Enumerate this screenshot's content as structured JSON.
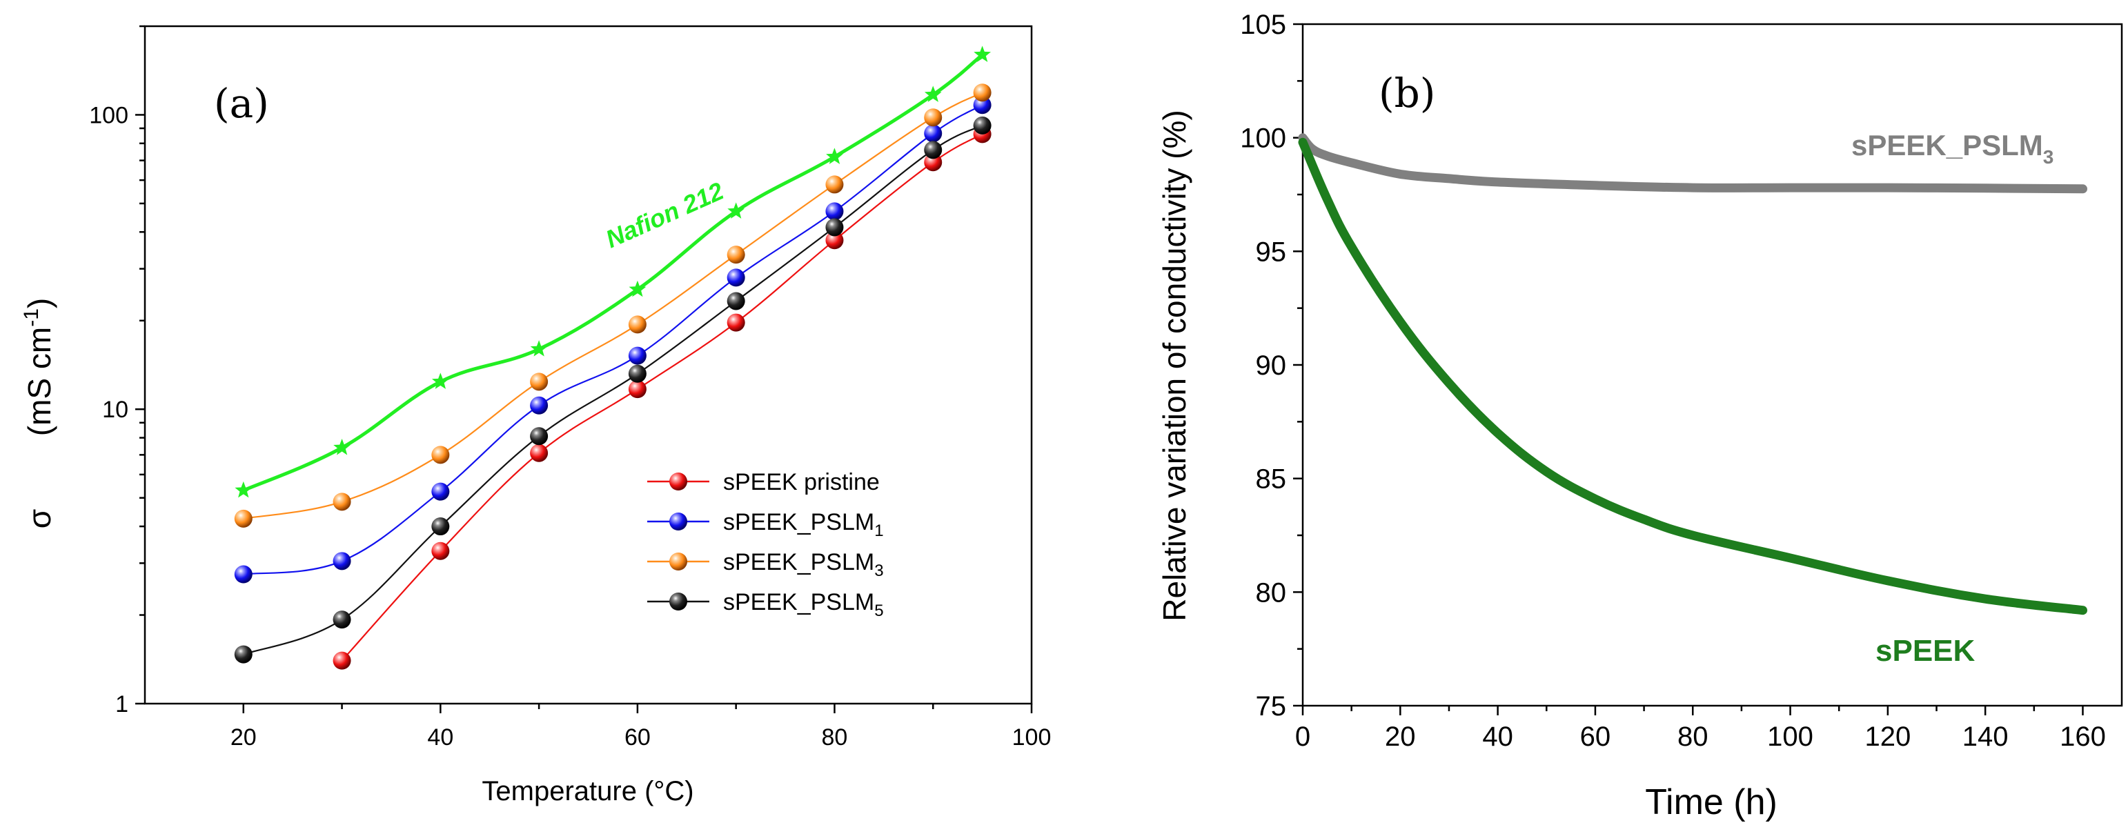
{
  "chart_data": [
    {
      "type": "line",
      "panel_label": "(a)",
      "xlabel": "Temperature (°C)",
      "ylabel": "σ",
      "ylabel_units": {
        "pre": "(mS cm",
        "sup": "-1",
        "post": ")"
      },
      "xlim": [
        10,
        100
      ],
      "ylim": [
        1,
        200
      ],
      "yscale": "log",
      "xticks": [
        "20",
        "40",
        "60",
        "80",
        "100"
      ],
      "yticks": [
        {
          "value": 1,
          "label": "1"
        },
        {
          "value": 10,
          "label": "10"
        },
        {
          "value": 100,
          "label": "100"
        }
      ],
      "annotation": "Nafion 212",
      "legend_position": "center-right",
      "series": [
        {
          "name": "Nafion 212",
          "color": "#22ee22",
          "marker": "star",
          "in_legend": false,
          "x": [
            20,
            30,
            40,
            50,
            60,
            70,
            80,
            90,
            95
          ],
          "values": [
            5.3,
            7.4,
            12.4,
            16.0,
            25.5,
            47.0,
            72.0,
            117.0,
            160.0
          ]
        },
        {
          "name": "sPEEK pristine",
          "base": "sPEEK pristine",
          "sub": "",
          "color": "#ee1111",
          "marker": "sphere",
          "in_legend": true,
          "x": [
            30,
            40,
            50,
            60,
            70,
            80,
            90,
            95
          ],
          "values": [
            1.4,
            3.3,
            7.1,
            11.7,
            19.7,
            37.5,
            69.0,
            86.0
          ]
        },
        {
          "name": "sPEEK_PSLM1",
          "base": "sPEEK_PSLM",
          "sub": "1",
          "color": "#1111ee",
          "marker": "sphere",
          "in_legend": true,
          "x": [
            20,
            30,
            40,
            50,
            60,
            70,
            80,
            90,
            95
          ],
          "values": [
            2.75,
            3.05,
            5.25,
            10.3,
            15.2,
            28.0,
            47.0,
            86.5,
            108.0
          ]
        },
        {
          "name": "sPEEK_PSLM3",
          "base": "sPEEK_PSLM",
          "sub": "3",
          "color": "#ff8c1a",
          "marker": "sphere",
          "in_legend": true,
          "x": [
            20,
            30,
            40,
            50,
            60,
            70,
            80,
            90,
            95
          ],
          "values": [
            4.25,
            4.85,
            7.0,
            12.4,
            19.4,
            33.5,
            58.0,
            98.0,
            119.0
          ]
        },
        {
          "name": "sPEEK_PSLM5",
          "base": "sPEEK_PSLM",
          "sub": "5",
          "color": "#111111",
          "marker": "sphere",
          "in_legend": true,
          "x": [
            20,
            30,
            40,
            50,
            60,
            70,
            80,
            90,
            95
          ],
          "values": [
            1.47,
            1.93,
            4.0,
            8.1,
            13.2,
            23.3,
            41.5,
            76.0,
            92.0
          ]
        }
      ]
    },
    {
      "type": "line",
      "panel_label": "(b)",
      "xlabel": "Time (h)",
      "ylabel": "Relative variation of conductivity (%)",
      "xlim": [
        0,
        168
      ],
      "ylim": [
        75,
        105
      ],
      "xticks": [
        "0",
        "20",
        "40",
        "60",
        "80",
        "100",
        "120",
        "140",
        "160"
      ],
      "yticks": [
        "75",
        "80",
        "85",
        "90",
        "95",
        "100",
        "105"
      ],
      "series": [
        {
          "name": "sPEEK_PSLM3",
          "base": "sPEEK_PSLM",
          "sub": "3",
          "color": "#808080",
          "x": [
            0,
            2,
            5,
            10,
            20,
            30,
            40,
            60,
            80,
            100,
            120,
            140,
            160
          ],
          "values": [
            100.0,
            99.5,
            99.2,
            98.9,
            98.4,
            98.2,
            98.05,
            97.9,
            97.8,
            97.8,
            97.8,
            97.78,
            97.75
          ]
        },
        {
          "name": "sPEEK",
          "base": "sPEEK",
          "sub": "",
          "color": "#1e7d1e",
          "x": [
            0,
            5,
            10,
            20,
            30,
            40,
            50,
            60,
            70,
            80,
            100,
            120,
            140,
            160
          ],
          "values": [
            99.8,
            97.3,
            95.2,
            91.9,
            89.2,
            87.0,
            85.3,
            84.1,
            83.2,
            82.5,
            81.5,
            80.5,
            79.7,
            79.2
          ]
        }
      ]
    }
  ]
}
